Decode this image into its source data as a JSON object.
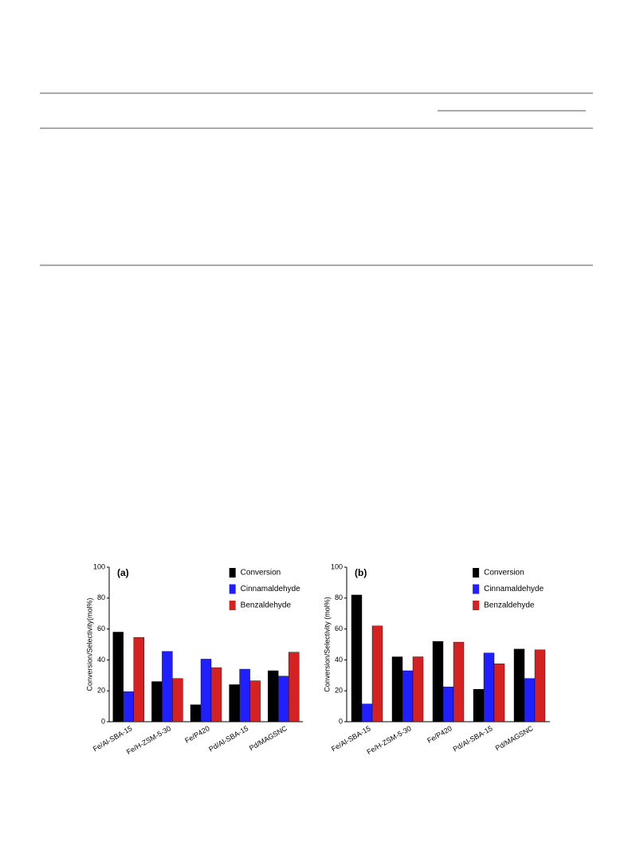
{
  "chart_data": [
    {
      "type": "bar",
      "annotation": "(a)",
      "ylabel": "Conversion/Selectivity(mol%)",
      "categories": [
        "Fe/Al-SBA-15",
        "Fe/H-ZSM-5-30",
        "Fe/P420",
        "Pd/Al-SBA-15",
        "Pd/MAGSNC"
      ],
      "series": [
        {
          "name": "Conversion",
          "color": "#000000",
          "values": [
            58,
            26,
            11,
            24,
            33
          ]
        },
        {
          "name": "Cinnamaldehyde",
          "color": "#1f1fff",
          "values": [
            19.5,
            45.5,
            40.5,
            34,
            29.5
          ]
        },
        {
          "name": "Benzaldehyde",
          "color": "#d42222",
          "values": [
            54.5,
            28,
            35,
            26.5,
            45
          ]
        }
      ],
      "ylim": [
        0,
        100
      ],
      "yticks": [
        0,
        20,
        40,
        60,
        80,
        100
      ],
      "legend": "upper right"
    },
    {
      "type": "bar",
      "annotation": "(b)",
      "ylabel": "Conversion/Selectivity (mol%)",
      "categories": [
        "Fe/Al-SBA-15",
        "Fe/H-ZSM-5-30",
        "Fe/P420",
        "Pd/Al-SBA-15",
        "Pd/MAGSNC"
      ],
      "series": [
        {
          "name": "Conversion",
          "color": "#000000",
          "values": [
            82,
            42,
            52,
            21,
            47
          ]
        },
        {
          "name": "Cinnamaldehyde",
          "color": "#1f1fff",
          "values": [
            11.5,
            33,
            22.5,
            44.5,
            28
          ]
        },
        {
          "name": "Benzaldehyde",
          "color": "#d42222",
          "values": [
            62,
            42,
            51.5,
            37.5,
            46.5
          ]
        }
      ],
      "ylim": [
        0,
        100
      ],
      "yticks": [
        0,
        20,
        40,
        60,
        80,
        100
      ],
      "legend": "upper right"
    }
  ]
}
